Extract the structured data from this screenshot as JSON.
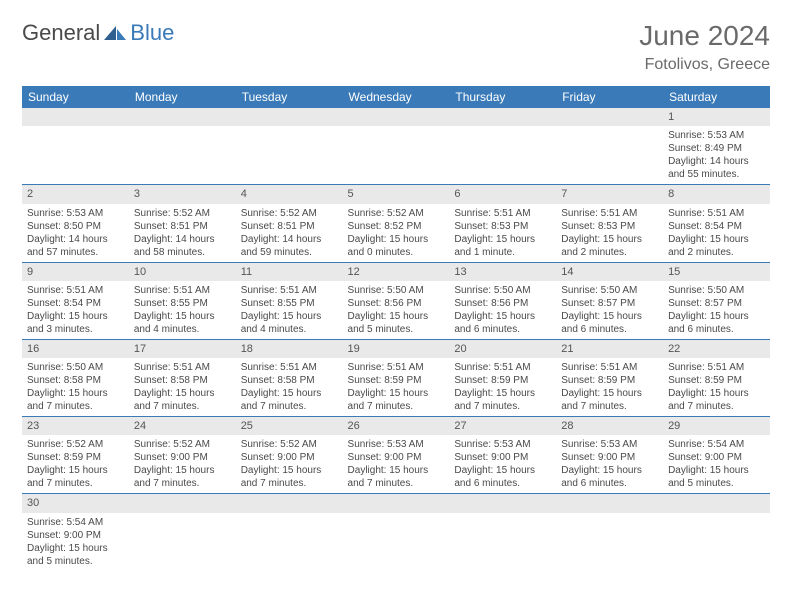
{
  "logo": {
    "text1": "General",
    "text2": "Blue"
  },
  "title": "June 2024",
  "location": "Fotolivos, Greece",
  "colors": {
    "header_bg": "#3a7ab8",
    "header_text": "#ffffff",
    "daynum_bg": "#e9e9e9",
    "border": "#3a7ab8",
    "text": "#4a4a4a",
    "logo_gray": "#4a4a4a",
    "logo_blue": "#3a7ab8"
  },
  "weekdays": [
    "Sunday",
    "Monday",
    "Tuesday",
    "Wednesday",
    "Thursday",
    "Friday",
    "Saturday"
  ],
  "weeks": [
    {
      "nums": [
        "",
        "",
        "",
        "",
        "",
        "",
        "1"
      ],
      "cells": [
        null,
        null,
        null,
        null,
        null,
        null,
        {
          "sr": "Sunrise: 5:53 AM",
          "ss": "Sunset: 8:49 PM",
          "d1": "Daylight: 14 hours",
          "d2": "and 55 minutes."
        }
      ]
    },
    {
      "nums": [
        "2",
        "3",
        "4",
        "5",
        "6",
        "7",
        "8"
      ],
      "cells": [
        {
          "sr": "Sunrise: 5:53 AM",
          "ss": "Sunset: 8:50 PM",
          "d1": "Daylight: 14 hours",
          "d2": "and 57 minutes."
        },
        {
          "sr": "Sunrise: 5:52 AM",
          "ss": "Sunset: 8:51 PM",
          "d1": "Daylight: 14 hours",
          "d2": "and 58 minutes."
        },
        {
          "sr": "Sunrise: 5:52 AM",
          "ss": "Sunset: 8:51 PM",
          "d1": "Daylight: 14 hours",
          "d2": "and 59 minutes."
        },
        {
          "sr": "Sunrise: 5:52 AM",
          "ss": "Sunset: 8:52 PM",
          "d1": "Daylight: 15 hours",
          "d2": "and 0 minutes."
        },
        {
          "sr": "Sunrise: 5:51 AM",
          "ss": "Sunset: 8:53 PM",
          "d1": "Daylight: 15 hours",
          "d2": "and 1 minute."
        },
        {
          "sr": "Sunrise: 5:51 AM",
          "ss": "Sunset: 8:53 PM",
          "d1": "Daylight: 15 hours",
          "d2": "and 2 minutes."
        },
        {
          "sr": "Sunrise: 5:51 AM",
          "ss": "Sunset: 8:54 PM",
          "d1": "Daylight: 15 hours",
          "d2": "and 2 minutes."
        }
      ]
    },
    {
      "nums": [
        "9",
        "10",
        "11",
        "12",
        "13",
        "14",
        "15"
      ],
      "cells": [
        {
          "sr": "Sunrise: 5:51 AM",
          "ss": "Sunset: 8:54 PM",
          "d1": "Daylight: 15 hours",
          "d2": "and 3 minutes."
        },
        {
          "sr": "Sunrise: 5:51 AM",
          "ss": "Sunset: 8:55 PM",
          "d1": "Daylight: 15 hours",
          "d2": "and 4 minutes."
        },
        {
          "sr": "Sunrise: 5:51 AM",
          "ss": "Sunset: 8:55 PM",
          "d1": "Daylight: 15 hours",
          "d2": "and 4 minutes."
        },
        {
          "sr": "Sunrise: 5:50 AM",
          "ss": "Sunset: 8:56 PM",
          "d1": "Daylight: 15 hours",
          "d2": "and 5 minutes."
        },
        {
          "sr": "Sunrise: 5:50 AM",
          "ss": "Sunset: 8:56 PM",
          "d1": "Daylight: 15 hours",
          "d2": "and 6 minutes."
        },
        {
          "sr": "Sunrise: 5:50 AM",
          "ss": "Sunset: 8:57 PM",
          "d1": "Daylight: 15 hours",
          "d2": "and 6 minutes."
        },
        {
          "sr": "Sunrise: 5:50 AM",
          "ss": "Sunset: 8:57 PM",
          "d1": "Daylight: 15 hours",
          "d2": "and 6 minutes."
        }
      ]
    },
    {
      "nums": [
        "16",
        "17",
        "18",
        "19",
        "20",
        "21",
        "22"
      ],
      "cells": [
        {
          "sr": "Sunrise: 5:50 AM",
          "ss": "Sunset: 8:58 PM",
          "d1": "Daylight: 15 hours",
          "d2": "and 7 minutes."
        },
        {
          "sr": "Sunrise: 5:51 AM",
          "ss": "Sunset: 8:58 PM",
          "d1": "Daylight: 15 hours",
          "d2": "and 7 minutes."
        },
        {
          "sr": "Sunrise: 5:51 AM",
          "ss": "Sunset: 8:58 PM",
          "d1": "Daylight: 15 hours",
          "d2": "and 7 minutes."
        },
        {
          "sr": "Sunrise: 5:51 AM",
          "ss": "Sunset: 8:59 PM",
          "d1": "Daylight: 15 hours",
          "d2": "and 7 minutes."
        },
        {
          "sr": "Sunrise: 5:51 AM",
          "ss": "Sunset: 8:59 PM",
          "d1": "Daylight: 15 hours",
          "d2": "and 7 minutes."
        },
        {
          "sr": "Sunrise: 5:51 AM",
          "ss": "Sunset: 8:59 PM",
          "d1": "Daylight: 15 hours",
          "d2": "and 7 minutes."
        },
        {
          "sr": "Sunrise: 5:51 AM",
          "ss": "Sunset: 8:59 PM",
          "d1": "Daylight: 15 hours",
          "d2": "and 7 minutes."
        }
      ]
    },
    {
      "nums": [
        "23",
        "24",
        "25",
        "26",
        "27",
        "28",
        "29"
      ],
      "cells": [
        {
          "sr": "Sunrise: 5:52 AM",
          "ss": "Sunset: 8:59 PM",
          "d1": "Daylight: 15 hours",
          "d2": "and 7 minutes."
        },
        {
          "sr": "Sunrise: 5:52 AM",
          "ss": "Sunset: 9:00 PM",
          "d1": "Daylight: 15 hours",
          "d2": "and 7 minutes."
        },
        {
          "sr": "Sunrise: 5:52 AM",
          "ss": "Sunset: 9:00 PM",
          "d1": "Daylight: 15 hours",
          "d2": "and 7 minutes."
        },
        {
          "sr": "Sunrise: 5:53 AM",
          "ss": "Sunset: 9:00 PM",
          "d1": "Daylight: 15 hours",
          "d2": "and 7 minutes."
        },
        {
          "sr": "Sunrise: 5:53 AM",
          "ss": "Sunset: 9:00 PM",
          "d1": "Daylight: 15 hours",
          "d2": "and 6 minutes."
        },
        {
          "sr": "Sunrise: 5:53 AM",
          "ss": "Sunset: 9:00 PM",
          "d1": "Daylight: 15 hours",
          "d2": "and 6 minutes."
        },
        {
          "sr": "Sunrise: 5:54 AM",
          "ss": "Sunset: 9:00 PM",
          "d1": "Daylight: 15 hours",
          "d2": "and 5 minutes."
        }
      ]
    },
    {
      "nums": [
        "30",
        "",
        "",
        "",
        "",
        "",
        ""
      ],
      "cells": [
        {
          "sr": "Sunrise: 5:54 AM",
          "ss": "Sunset: 9:00 PM",
          "d1": "Daylight: 15 hours",
          "d2": "and 5 minutes."
        },
        null,
        null,
        null,
        null,
        null,
        null
      ]
    }
  ]
}
